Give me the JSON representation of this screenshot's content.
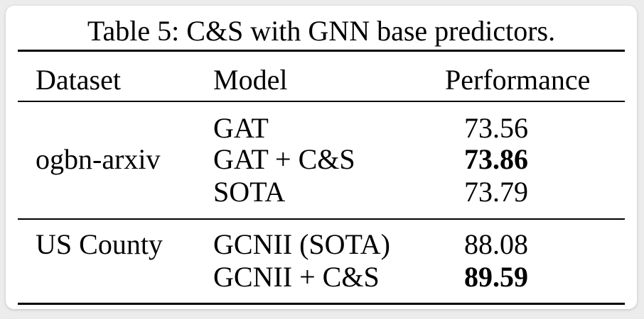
{
  "caption": "Table 5: C&S with GNN base predictors.",
  "headers": {
    "dataset": "Dataset",
    "model": "Model",
    "performance": "Performance"
  },
  "groups": [
    {
      "dataset": "ogbn-arxiv",
      "rows": [
        {
          "model": "GAT",
          "performance": "73.56",
          "bold": false
        },
        {
          "model": "GAT + C&S",
          "performance": "73.86",
          "bold": true
        },
        {
          "model": "SOTA",
          "performance": "73.79",
          "bold": false
        }
      ]
    },
    {
      "dataset": "US County",
      "rows": [
        {
          "model": "GCNII (SOTA)",
          "performance": "88.08",
          "bold": false
        },
        {
          "model": "GCNII + C&S",
          "performance": "89.59",
          "bold": true
        }
      ]
    }
  ]
}
